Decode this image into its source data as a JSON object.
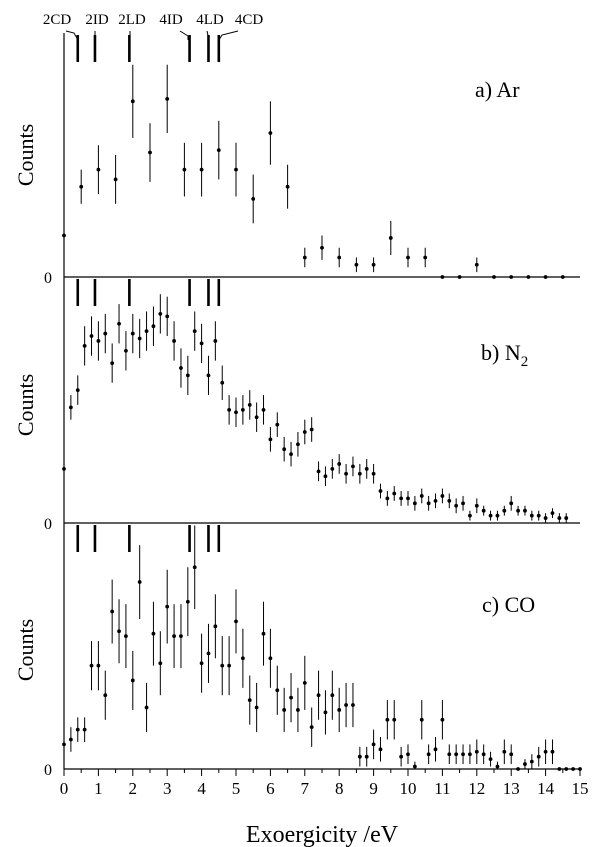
{
  "chart_data": {
    "type": "scatter",
    "shared_x_axis": {
      "label": "Exoergicity /eV",
      "lim": [
        0,
        15
      ],
      "ticks": [
        "0",
        "1",
        "2",
        "3",
        "4",
        "5",
        "6",
        "7",
        "8",
        "9",
        "10",
        "11",
        "12",
        "13",
        "14",
        "15"
      ]
    },
    "ylabel": "Counts",
    "error_bars": true,
    "state_markers": {
      "labels": [
        "2CD",
        "2ID",
        "2LD",
        "4ID",
        "4LD",
        "4CD"
      ],
      "x": [
        0.4,
        0.9,
        1.9,
        3.65,
        4.2,
        4.5
      ]
    },
    "panels": [
      {
        "label": "a) Ar",
        "ylim": [
          0,
          100
        ],
        "y_tick": "0",
        "x": [
          0,
          0.5,
          1,
          1.5,
          2,
          2.5,
          3,
          3.5,
          4,
          4.5,
          5,
          5.5,
          6,
          6.5,
          7,
          7.5,
          8,
          8.5,
          9,
          9.5,
          10,
          10.5,
          11,
          11.5,
          12,
          12.5,
          13,
          13.5,
          14,
          14.5
        ],
        "y": [
          17,
          37,
          44,
          40,
          72,
          51,
          73,
          44,
          44,
          52,
          44,
          32,
          59,
          37,
          8,
          12,
          8,
          5,
          5,
          16,
          8,
          8,
          0,
          0,
          5,
          0,
          0,
          0,
          0,
          0
        ],
        "yerr": [
          0,
          7,
          10,
          10,
          15,
          12,
          14,
          11,
          11,
          12,
          11,
          10,
          13,
          9,
          4,
          5,
          4,
          3,
          3,
          7,
          4,
          4,
          0,
          0,
          3,
          0,
          0,
          0,
          0,
          0
        ]
      },
      {
        "label": "b) N",
        "label_sub": "2",
        "ylim": [
          0,
          100
        ],
        "y_tick": "0",
        "x": [
          0,
          0.2,
          0.4,
          0.6,
          0.8,
          1,
          1.2,
          1.4,
          1.6,
          1.8,
          2,
          2.2,
          2.4,
          2.6,
          2.8,
          3,
          3.2,
          3.4,
          3.6,
          3.8,
          4,
          4.2,
          4.4,
          4.6,
          4.8,
          5,
          5.2,
          5.4,
          5.6,
          5.8,
          6,
          6.2,
          6.4,
          6.6,
          6.8,
          7,
          7.2,
          7.4,
          7.6,
          7.8,
          8,
          8.2,
          8.4,
          8.6,
          8.8,
          9,
          9.2,
          9.4,
          9.6,
          9.8,
          10,
          10.2,
          10.4,
          10.6,
          10.8,
          11,
          11.2,
          11.4,
          11.6,
          11.8,
          12,
          12.2,
          12.4,
          12.6,
          12.8,
          13,
          13.2,
          13.4,
          13.6,
          13.8,
          14,
          14.2,
          14.4,
          14.6
        ],
        "y": [
          22,
          47,
          54,
          72,
          76,
          74,
          77,
          65,
          81,
          70,
          77,
          75,
          78,
          80,
          85,
          84,
          74,
          63,
          60,
          78,
          73,
          60,
          74,
          57,
          46,
          45,
          46,
          48,
          43,
          46,
          34,
          40,
          30,
          28,
          32,
          37,
          38,
          21,
          19,
          22,
          24,
          20,
          23,
          20,
          22,
          20,
          13,
          10,
          12,
          10,
          10,
          8,
          11,
          8,
          9,
          11,
          9,
          7,
          8,
          3,
          7,
          5,
          3,
          3,
          5,
          8,
          5,
          5,
          3,
          3,
          2,
          4,
          2,
          2
        ],
        "yerr": [
          0,
          5,
          6,
          8,
          8,
          8,
          8,
          8,
          8,
          8,
          8,
          8,
          8,
          8,
          8,
          8,
          8,
          8,
          8,
          8,
          8,
          8,
          8,
          7,
          6,
          6,
          6,
          6,
          6,
          6,
          5,
          5,
          5,
          5,
          5,
          5,
          5,
          4,
          4,
          4,
          4,
          4,
          4,
          4,
          4,
          4,
          3,
          3,
          3,
          3,
          3,
          3,
          3,
          3,
          3,
          3,
          3,
          3,
          3,
          2,
          3,
          2,
          2,
          2,
          2,
          3,
          2,
          2,
          2,
          2,
          2,
          2,
          2,
          2
        ]
      },
      {
        "label": "c) CO",
        "ylim": [
          0,
          100
        ],
        "y_tick": "0",
        "x": [
          0,
          0.2,
          0.4,
          0.6,
          0.8,
          1,
          1.2,
          1.4,
          1.6,
          1.8,
          2,
          2.2,
          2.4,
          2.6,
          2.8,
          3,
          3.2,
          3.4,
          3.6,
          3.8,
          4,
          4.2,
          4.4,
          4.6,
          4.8,
          5,
          5.2,
          5.4,
          5.6,
          5.8,
          6,
          6.2,
          6.4,
          6.6,
          6.8,
          7,
          7.2,
          7.4,
          7.6,
          7.8,
          8,
          8.2,
          8.4,
          8.6,
          8.8,
          9,
          9.2,
          9.4,
          9.6,
          9.8,
          10,
          10.2,
          10.4,
          10.6,
          10.8,
          11,
          11.2,
          11.4,
          11.6,
          11.8,
          12,
          12.2,
          12.4,
          12.6,
          12.8,
          13,
          13.2,
          13.4,
          13.6,
          13.8,
          14,
          14.2,
          14.4,
          14.6,
          14.8,
          15
        ],
        "y": [
          10,
          12,
          16,
          16,
          42,
          42,
          30,
          64,
          56,
          54,
          36,
          76,
          25,
          55,
          43,
          66,
          54,
          54,
          68,
          82,
          43,
          47,
          58,
          42,
          42,
          60,
          45,
          28,
          25,
          55,
          45,
          32,
          24,
          29,
          24,
          35,
          17,
          30,
          23,
          30,
          24,
          26,
          26,
          5,
          5,
          10,
          8,
          20,
          20,
          5,
          6,
          1,
          20,
          6,
          8,
          20,
          6,
          6,
          6,
          6,
          7,
          6,
          4,
          1,
          7,
          6,
          0,
          2,
          3,
          5,
          7,
          7,
          0,
          0,
          0,
          0
        ],
        "yerr": [
          5,
          5,
          5,
          5,
          10,
          10,
          10,
          13,
          13,
          13,
          12,
          15,
          10,
          13,
          13,
          15,
          13,
          13,
          14,
          17,
          12,
          12,
          13,
          12,
          12,
          13,
          12,
          10,
          10,
          13,
          12,
          10,
          9,
          10,
          9,
          11,
          8,
          10,
          9,
          10,
          9,
          9,
          9,
          4,
          4,
          6,
          5,
          8,
          8,
          4,
          4,
          2,
          8,
          4,
          5,
          8,
          4,
          4,
          4,
          4,
          5,
          4,
          3,
          2,
          5,
          4,
          0,
          2,
          3,
          4,
          5,
          5,
          0,
          0,
          0,
          0
        ]
      }
    ]
  }
}
